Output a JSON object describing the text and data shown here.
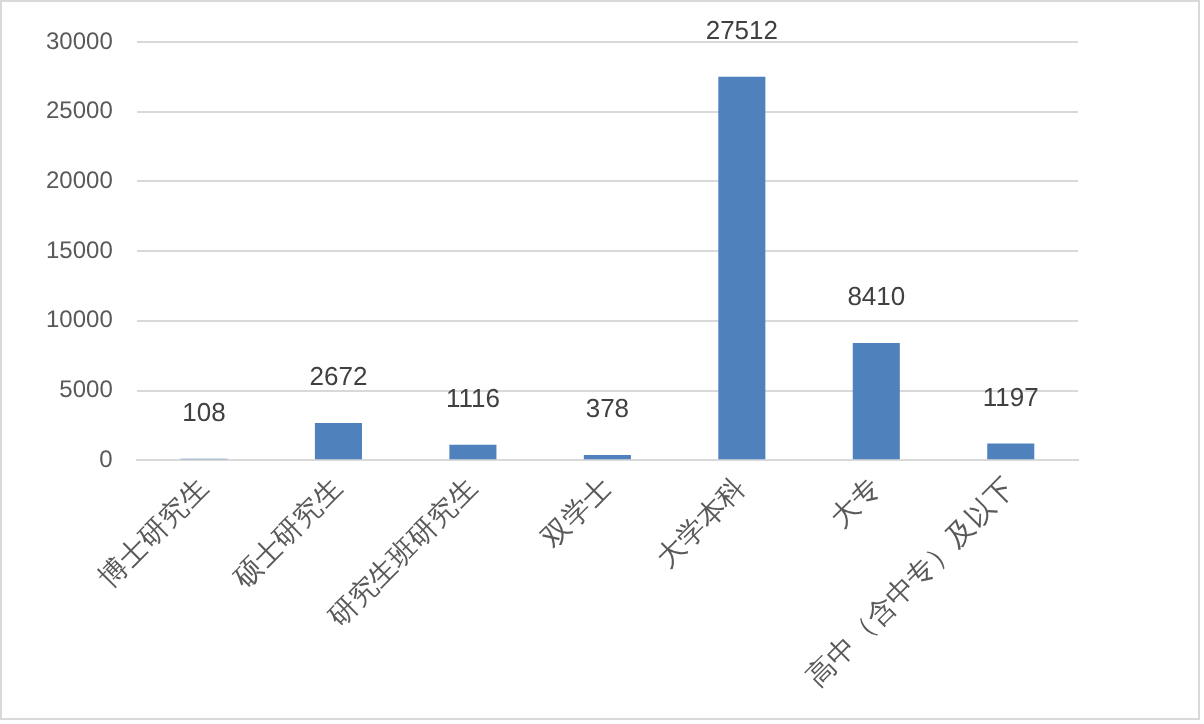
{
  "chart_data": {
    "type": "bar",
    "categories": [
      "博士研究生",
      "硕士研究生",
      "研究生班研究生",
      "双学士",
      "大学本科",
      "大专",
      "高中（含中专）及以下"
    ],
    "values": [
      108,
      2672,
      1116,
      378,
      27512,
      8410,
      1197
    ],
    "color": "#4f81bd",
    "ylim": [
      0,
      30000
    ],
    "yticks": [
      0,
      5000,
      10000,
      15000,
      20000,
      25000,
      30000
    ],
    "grid": "y",
    "data_labels": true,
    "legend": false
  }
}
